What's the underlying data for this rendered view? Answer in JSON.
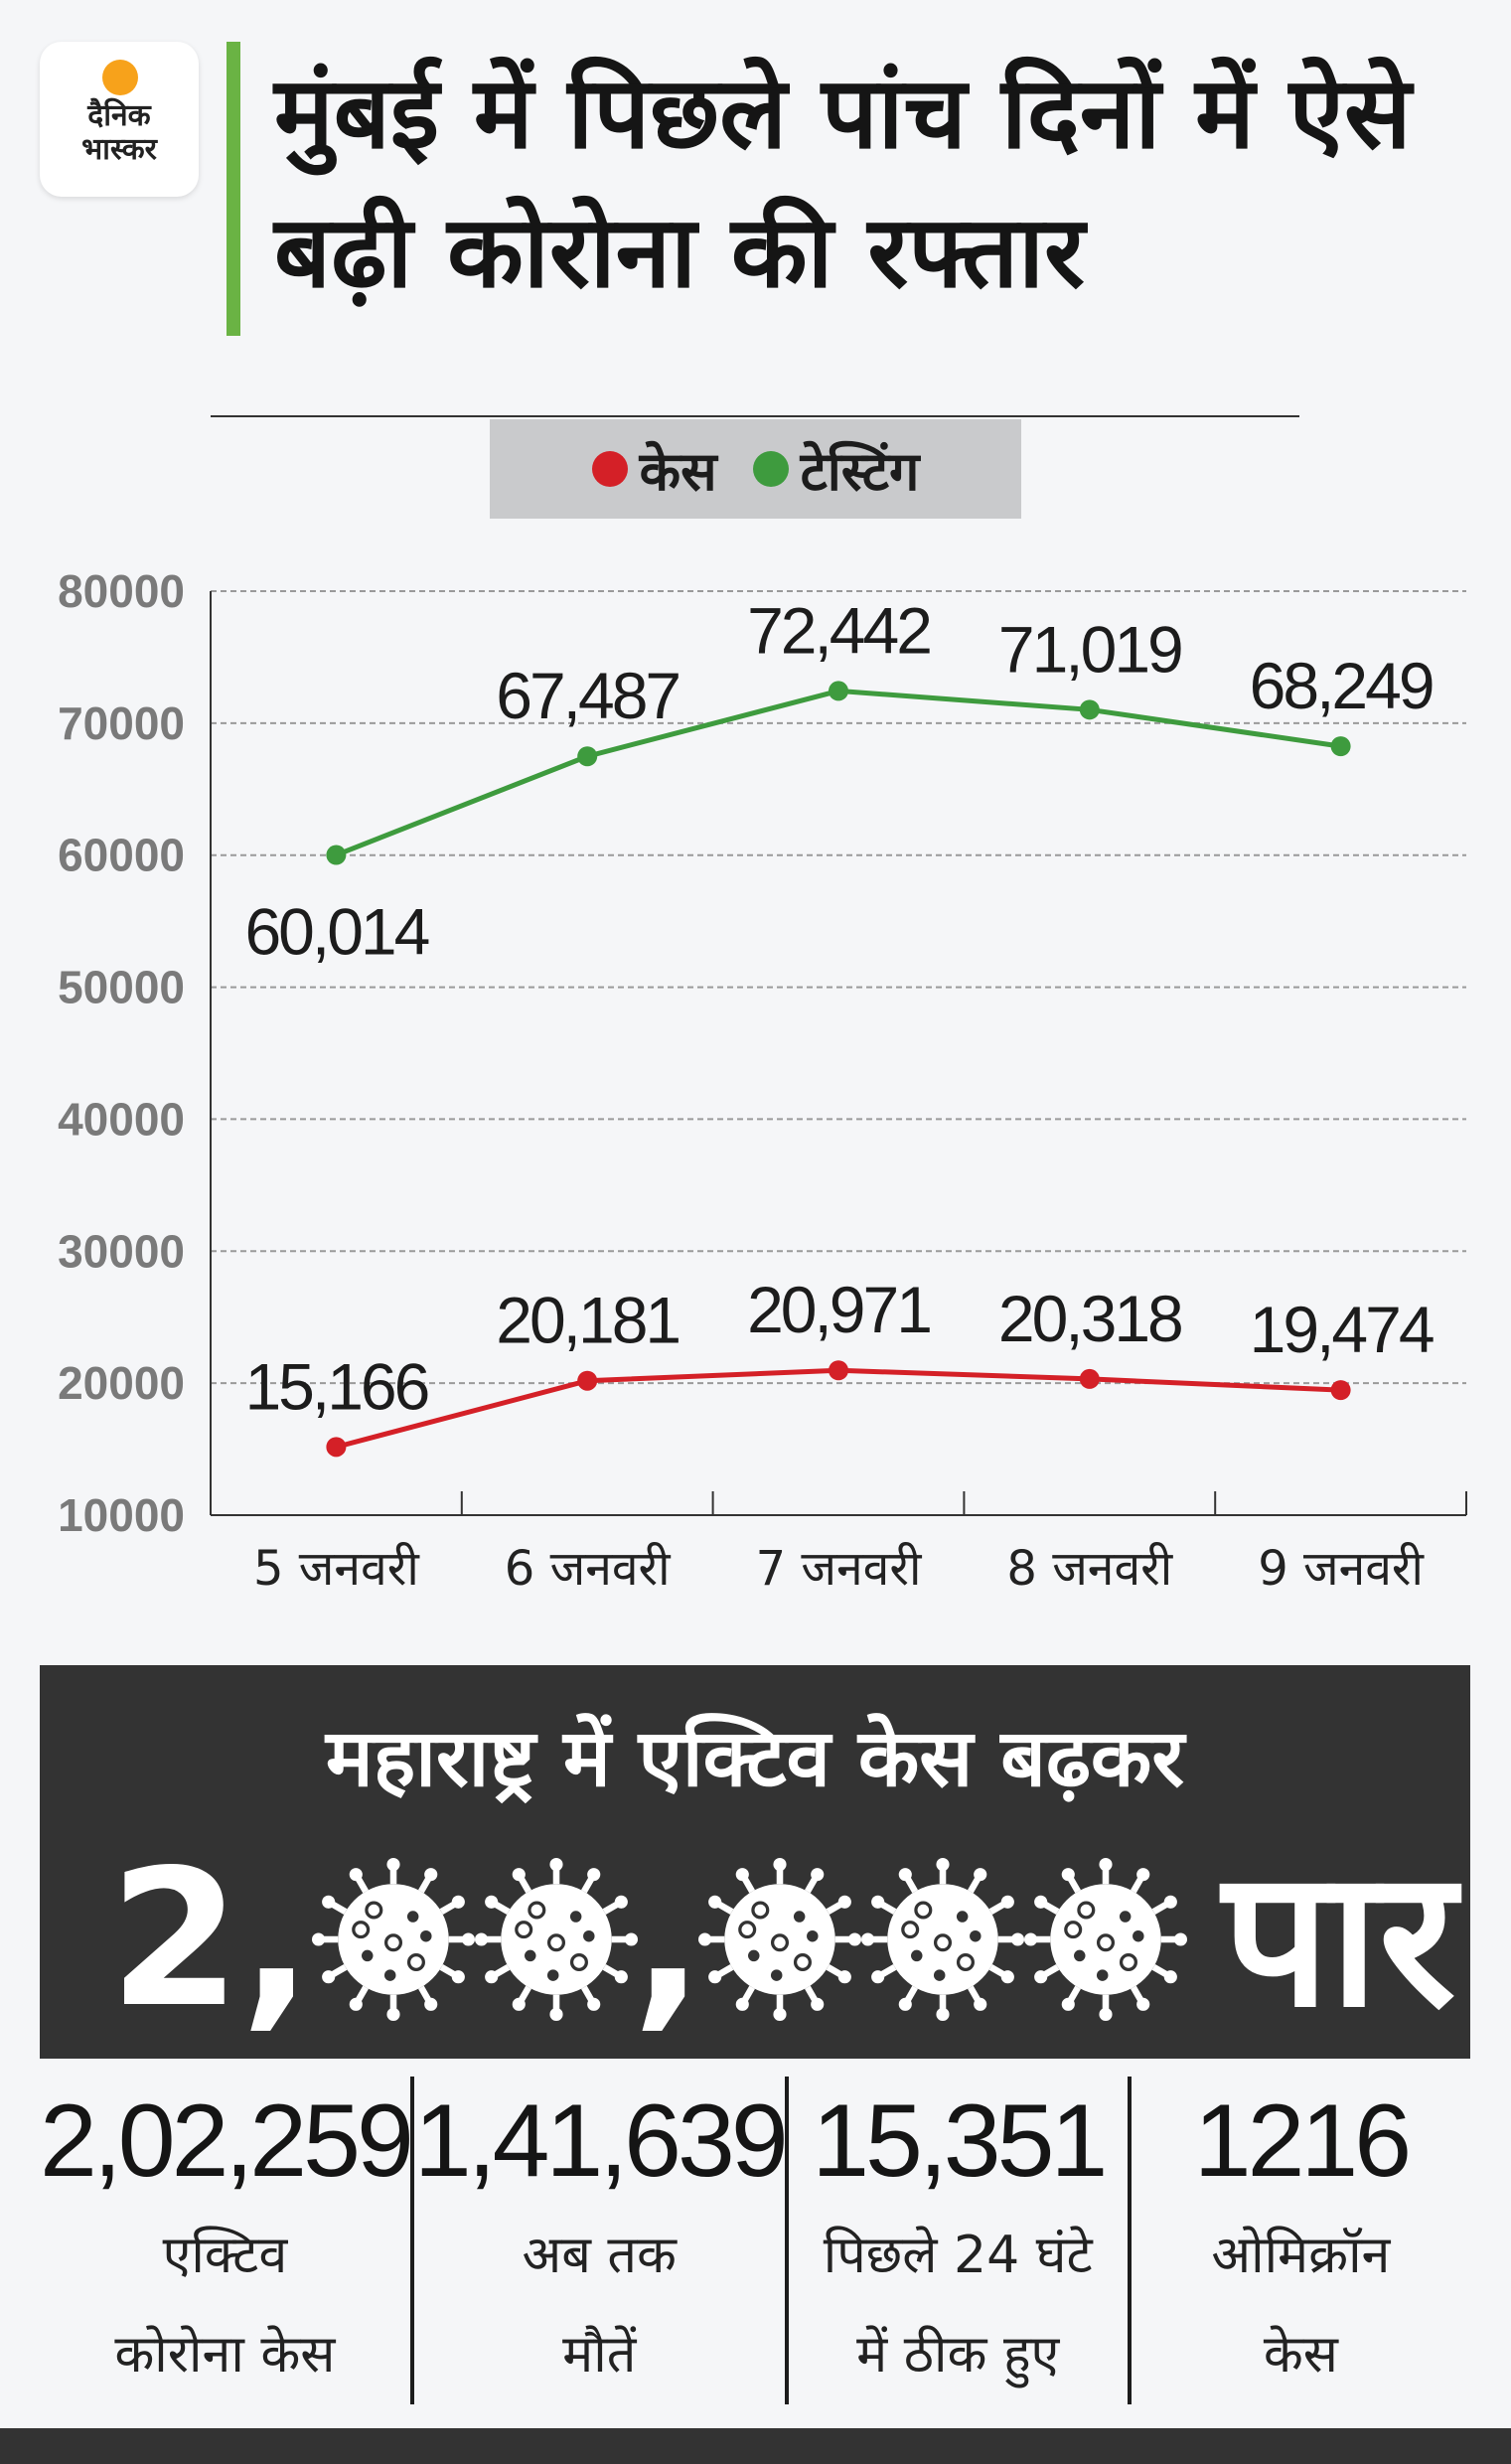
{
  "logo": {
    "line1": "दैनिक",
    "line2": "भास्कर"
  },
  "title": "मुंबई में पिछले पांच दिनों में ऐसे बढ़ी कोरोना की रफ्तार",
  "legend": {
    "cases_label": "केस",
    "cases_color": "#d42027",
    "testing_label": "टेस्टिंग",
    "testing_color": "#3e9b3e"
  },
  "chart_data": {
    "type": "line",
    "categories": [
      "5 जनवरी",
      "6 जनवरी",
      "7 जनवरी",
      "8 जनवरी",
      "9 जनवरी"
    ],
    "series": [
      {
        "name": "टेस्टिंग",
        "color": "#3e9b3e",
        "values": [
          60014,
          67487,
          72442,
          71019,
          68249
        ],
        "labels": [
          "60,014",
          "67,487",
          "72,442",
          "71,019",
          "68,249"
        ]
      },
      {
        "name": "केस",
        "color": "#d42027",
        "values": [
          15166,
          20181,
          20971,
          20318,
          19474
        ],
        "labels": [
          "15,166",
          "20,181",
          "20,971",
          "20,318",
          "19,474"
        ]
      }
    ],
    "yticks": [
      "10000",
      "20000",
      "30000",
      "40000",
      "50000",
      "60000",
      "70000",
      "80000"
    ],
    "ylim": [
      10000,
      80000
    ],
    "grid": true,
    "legend_position": "top"
  },
  "banner": {
    "heading": "महाराष्ट्र में एक्टिव केस बढ़कर",
    "number_prefix": "2,",
    "comma": ",",
    "suffix": "पार",
    "icon": "virus-icon"
  },
  "stats": [
    {
      "value": "2,02,259",
      "label_line1": "एक्टिव",
      "label_line2": "कोरोना केस"
    },
    {
      "value": "1,41,639",
      "label_line1": "अब तक",
      "label_line2": "मौतें"
    },
    {
      "value": "15,351",
      "label_line1": "पिछले 24 घंटे",
      "label_line2": "में ठीक हुए"
    },
    {
      "value": "1216",
      "label_line1": "ओमिक्रॉन",
      "label_line2": "केस"
    }
  ]
}
